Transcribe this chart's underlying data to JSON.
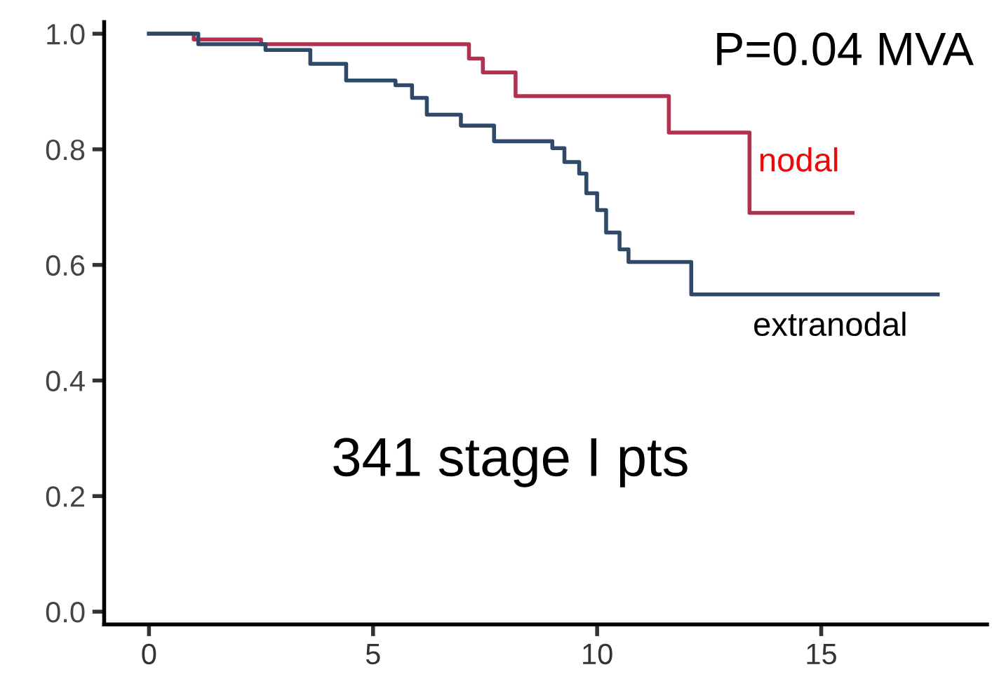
{
  "chart_data": {
    "type": "step",
    "annotations": [
      "P=0.04 MVA",
      "341 stage I pts"
    ],
    "xlim": [
      -1,
      18.7
    ],
    "ylim": [
      -0.022,
      1.02
    ],
    "xticks": [
      0,
      5,
      10,
      15
    ],
    "yticks": [
      {
        "value": 0,
        "label": "0.0"
      },
      0.2,
      0.4,
      0.6,
      0.8,
      {
        "value": 1,
        "label": "1.0"
      }
    ],
    "grid": false,
    "legend": false,
    "series": [
      {
        "name": "nodal",
        "color": "#b5304f",
        "x": [
          0,
          1,
          2.5,
          7.14,
          7.45,
          8.18,
          11.6,
          13.4,
          15.7
        ],
        "values": [
          1.0,
          0.99,
          0.982,
          0.957,
          0.933,
          0.892,
          0.829,
          0.69,
          0.69
        ]
      },
      {
        "name": "extranodal",
        "color": "#2e4a6b",
        "x": [
          0,
          1.1,
          2.6,
          3.6,
          4.4,
          5.5,
          5.87,
          6.2,
          6.96,
          7.7,
          9.0,
          9.27,
          9.6,
          9.76,
          10.0,
          10.2,
          10.5,
          10.7,
          12.1,
          17.6
        ],
        "values": [
          1.0,
          0.982,
          0.972,
          0.948,
          0.919,
          0.911,
          0.889,
          0.86,
          0.841,
          0.814,
          0.802,
          0.778,
          0.758,
          0.724,
          0.695,
          0.656,
          0.627,
          0.605,
          0.549,
          0.549
        ]
      }
    ]
  }
}
